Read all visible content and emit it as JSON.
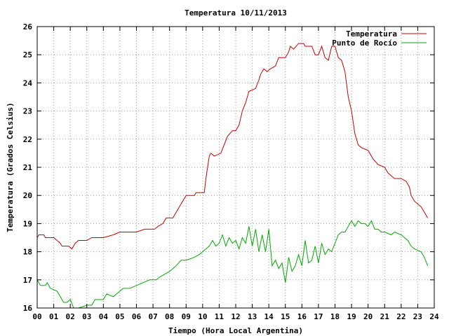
{
  "chart_data": {
    "type": "line",
    "title": "Temperatura 10/11/2013",
    "xlabel": "Tiempo (Hora Local Argentina)",
    "ylabel": "Temperatura (Grados Celsius)",
    "xlim": [
      0,
      24
    ],
    "ylim": [
      16,
      26
    ],
    "x_ticks": [
      "00",
      "01",
      "02",
      "03",
      "04",
      "05",
      "06",
      "07",
      "08",
      "09",
      "10",
      "11",
      "12",
      "13",
      "14",
      "15",
      "16",
      "17",
      "18",
      "19",
      "20",
      "21",
      "22",
      "23",
      "24"
    ],
    "y_ticks": [
      "16",
      "17",
      "18",
      "19",
      "20",
      "21",
      "22",
      "23",
      "24",
      "25",
      "26"
    ],
    "grid": true,
    "legend_position": "top-right",
    "series": [
      {
        "name": "Temperatura",
        "color": "#cc0000",
        "points": [
          [
            0.0,
            18.5
          ],
          [
            0.1,
            18.6
          ],
          [
            0.4,
            18.6
          ],
          [
            0.5,
            18.5
          ],
          [
            1.0,
            18.5
          ],
          [
            1.2,
            18.4
          ],
          [
            1.4,
            18.3
          ],
          [
            1.5,
            18.2
          ],
          [
            1.9,
            18.2
          ],
          [
            2.1,
            18.1
          ],
          [
            2.3,
            18.3
          ],
          [
            2.5,
            18.4
          ],
          [
            3.0,
            18.4
          ],
          [
            3.3,
            18.5
          ],
          [
            4.0,
            18.5
          ],
          [
            4.6,
            18.6
          ],
          [
            5.0,
            18.7
          ],
          [
            5.6,
            18.7
          ],
          [
            6.0,
            18.7
          ],
          [
            6.5,
            18.8
          ],
          [
            7.1,
            18.8
          ],
          [
            7.3,
            18.9
          ],
          [
            7.6,
            19.0
          ],
          [
            7.8,
            19.2
          ],
          [
            8.2,
            19.2
          ],
          [
            8.4,
            19.4
          ],
          [
            8.6,
            19.6
          ],
          [
            8.8,
            19.8
          ],
          [
            9.0,
            20.0
          ],
          [
            9.5,
            20.0
          ],
          [
            9.6,
            20.1
          ],
          [
            10.1,
            20.1
          ],
          [
            10.2,
            20.6
          ],
          [
            10.3,
            21.0
          ],
          [
            10.4,
            21.4
          ],
          [
            10.5,
            21.5
          ],
          [
            10.7,
            21.4
          ],
          [
            11.1,
            21.5
          ],
          [
            11.3,
            21.8
          ],
          [
            11.5,
            22.1
          ],
          [
            11.8,
            22.3
          ],
          [
            12.0,
            22.3
          ],
          [
            12.2,
            22.5
          ],
          [
            12.4,
            23.0
          ],
          [
            12.6,
            23.3
          ],
          [
            12.8,
            23.7
          ],
          [
            13.2,
            23.8
          ],
          [
            13.4,
            24.1
          ],
          [
            13.5,
            24.3
          ],
          [
            13.7,
            24.5
          ],
          [
            13.9,
            24.4
          ],
          [
            14.1,
            24.5
          ],
          [
            14.4,
            24.6
          ],
          [
            14.6,
            24.9
          ],
          [
            15.0,
            24.9
          ],
          [
            15.2,
            25.1
          ],
          [
            15.3,
            25.3
          ],
          [
            15.5,
            25.2
          ],
          [
            15.8,
            25.4
          ],
          [
            16.1,
            25.4
          ],
          [
            16.2,
            25.3
          ],
          [
            16.6,
            25.3
          ],
          [
            16.8,
            25.0
          ],
          [
            17.0,
            25.0
          ],
          [
            17.2,
            25.3
          ],
          [
            17.4,
            24.9
          ],
          [
            17.6,
            24.8
          ],
          [
            17.8,
            25.3
          ],
          [
            18.0,
            25.3
          ],
          [
            18.2,
            24.9
          ],
          [
            18.4,
            24.8
          ],
          [
            18.6,
            24.4
          ],
          [
            18.8,
            23.5
          ],
          [
            19.0,
            23.0
          ],
          [
            19.2,
            22.2
          ],
          [
            19.4,
            21.8
          ],
          [
            19.6,
            21.7
          ],
          [
            20.0,
            21.6
          ],
          [
            20.3,
            21.3
          ],
          [
            20.6,
            21.1
          ],
          [
            21.0,
            21.0
          ],
          [
            21.2,
            20.8
          ],
          [
            21.4,
            20.7
          ],
          [
            21.6,
            20.6
          ],
          [
            22.0,
            20.6
          ],
          [
            22.3,
            20.5
          ],
          [
            22.5,
            20.3
          ],
          [
            22.6,
            20.0
          ],
          [
            22.8,
            19.8
          ],
          [
            23.0,
            19.7
          ],
          [
            23.2,
            19.6
          ],
          [
            23.4,
            19.4
          ],
          [
            23.6,
            19.2
          ]
        ]
      },
      {
        "name": "Punto de Rocío",
        "color": "#00aa00",
        "points": [
          [
            0.0,
            17.0
          ],
          [
            0.2,
            16.8
          ],
          [
            0.5,
            16.8
          ],
          [
            0.6,
            16.9
          ],
          [
            0.8,
            16.7
          ],
          [
            1.2,
            16.6
          ],
          [
            1.4,
            16.4
          ],
          [
            1.6,
            16.2
          ],
          [
            1.8,
            16.2
          ],
          [
            2.0,
            16.3
          ],
          [
            2.2,
            16.0
          ],
          [
            2.5,
            16.0
          ],
          [
            3.0,
            16.1
          ],
          [
            3.3,
            16.1
          ],
          [
            3.5,
            16.3
          ],
          [
            4.0,
            16.3
          ],
          [
            4.2,
            16.5
          ],
          [
            4.6,
            16.4
          ],
          [
            5.0,
            16.6
          ],
          [
            5.2,
            16.7
          ],
          [
            5.6,
            16.7
          ],
          [
            6.0,
            16.8
          ],
          [
            6.4,
            16.9
          ],
          [
            6.8,
            17.0
          ],
          [
            7.2,
            17.0
          ],
          [
            7.4,
            17.1
          ],
          [
            7.7,
            17.2
          ],
          [
            8.0,
            17.3
          ],
          [
            8.2,
            17.4
          ],
          [
            8.4,
            17.5
          ],
          [
            8.7,
            17.7
          ],
          [
            9.0,
            17.7
          ],
          [
            9.5,
            17.8
          ],
          [
            9.8,
            17.9
          ],
          [
            10.0,
            18.0
          ],
          [
            10.2,
            18.1
          ],
          [
            10.4,
            18.2
          ],
          [
            10.6,
            18.4
          ],
          [
            10.8,
            18.2
          ],
          [
            11.0,
            18.3
          ],
          [
            11.2,
            18.6
          ],
          [
            11.4,
            18.2
          ],
          [
            11.6,
            18.5
          ],
          [
            11.8,
            18.3
          ],
          [
            12.0,
            18.4
          ],
          [
            12.2,
            18.1
          ],
          [
            12.4,
            18.5
          ],
          [
            12.6,
            18.3
          ],
          [
            12.8,
            18.9
          ],
          [
            13.0,
            18.2
          ],
          [
            13.2,
            18.8
          ],
          [
            13.4,
            18.0
          ],
          [
            13.6,
            18.6
          ],
          [
            13.8,
            18.0
          ],
          [
            14.0,
            18.8
          ],
          [
            14.2,
            17.5
          ],
          [
            14.4,
            17.7
          ],
          [
            14.6,
            17.4
          ],
          [
            14.8,
            17.6
          ],
          [
            15.0,
            16.9
          ],
          [
            15.2,
            17.8
          ],
          [
            15.4,
            17.3
          ],
          [
            15.6,
            17.5
          ],
          [
            15.8,
            17.9
          ],
          [
            16.0,
            17.5
          ],
          [
            16.2,
            18.4
          ],
          [
            16.4,
            17.6
          ],
          [
            16.6,
            17.7
          ],
          [
            16.8,
            18.2
          ],
          [
            17.0,
            17.6
          ],
          [
            17.2,
            18.3
          ],
          [
            17.4,
            17.9
          ],
          [
            17.6,
            18.1
          ],
          [
            17.8,
            18.0
          ],
          [
            18.0,
            18.3
          ],
          [
            18.2,
            18.6
          ],
          [
            18.4,
            18.7
          ],
          [
            18.6,
            18.7
          ],
          [
            18.8,
            18.9
          ],
          [
            19.0,
            19.1
          ],
          [
            19.2,
            18.9
          ],
          [
            19.4,
            19.1
          ],
          [
            19.6,
            19.0
          ],
          [
            19.8,
            19.0
          ],
          [
            20.0,
            18.9
          ],
          [
            20.2,
            19.1
          ],
          [
            20.4,
            18.8
          ],
          [
            20.6,
            18.8
          ],
          [
            20.8,
            18.7
          ],
          [
            21.0,
            18.7
          ],
          [
            21.4,
            18.6
          ],
          [
            21.6,
            18.7
          ],
          [
            22.0,
            18.6
          ],
          [
            22.2,
            18.5
          ],
          [
            22.4,
            18.4
          ],
          [
            22.6,
            18.2
          ],
          [
            22.8,
            18.1
          ],
          [
            23.2,
            18.0
          ],
          [
            23.4,
            17.8
          ],
          [
            23.6,
            17.5
          ]
        ]
      }
    ]
  }
}
